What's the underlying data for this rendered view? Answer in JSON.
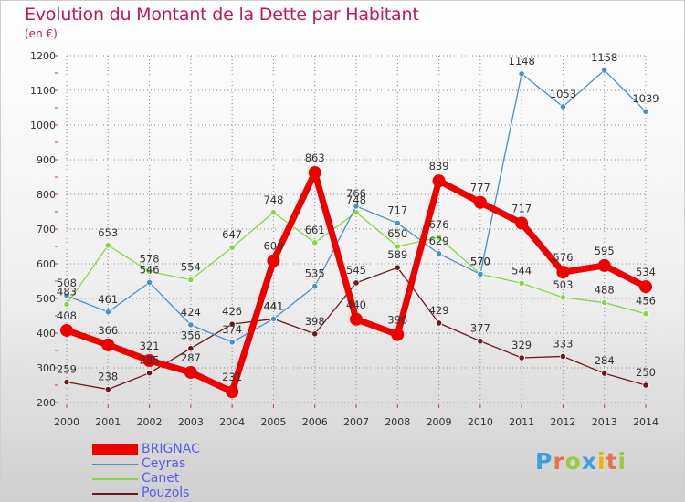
{
  "title": "Evolution du Montant de la Dette par Habitant",
  "subtitle": "(en €)",
  "logo": {
    "text": "Proxiti",
    "letter_colors": [
      "#3aa0e0",
      "#e8734a",
      "#9ccc3c",
      "#3aa0e0",
      "#f0b400",
      "#e8734a",
      "#9ccc3c"
    ]
  },
  "chart_data": {
    "type": "line",
    "x": [
      "2000",
      "2001",
      "2002",
      "2003",
      "2004",
      "2005",
      "2006",
      "2007",
      "2008",
      "2009",
      "2010",
      "2011",
      "2012",
      "2013",
      "2014"
    ],
    "y_ticks": [
      "200",
      "300",
      "400",
      "500",
      "600",
      "700",
      "800",
      "900",
      "1000",
      "1100",
      "1200"
    ],
    "ylim": [
      200,
      1200
    ],
    "grid": true,
    "legend_position": "bottom-left",
    "series": [
      {
        "name": "BRIGNAC",
        "color": "#ee0000",
        "emphasis": true,
        "values": [
          408,
          366,
          321,
          287,
          231,
          609,
          863,
          440,
          396,
          839,
          777,
          717,
          576,
          595,
          534
        ],
        "labels": [
          "408",
          "366",
          "321",
          "287",
          "231",
          "609",
          "863",
          "440",
          "396",
          "839",
          "777",
          "717",
          "576",
          "595",
          "534"
        ]
      },
      {
        "name": "Ceyras",
        "color": "#4a90c8",
        "emphasis": false,
        "values": [
          508,
          461,
          546,
          424,
          374,
          441,
          535,
          766,
          717,
          629,
          570,
          1148,
          1053,
          1158,
          1039
        ],
        "labels": [
          "508",
          "461",
          "546",
          "424",
          "374",
          "441",
          "535",
          "766",
          "717",
          "629",
          "570",
          "1148",
          "1053",
          "1158",
          "1039"
        ]
      },
      {
        "name": "Canet",
        "color": "#86d64a",
        "emphasis": false,
        "values": [
          483,
          653,
          578,
          554,
          647,
          748,
          661,
          748,
          650,
          676,
          570,
          544,
          503,
          488,
          456
        ],
        "labels": [
          "483",
          "653",
          "578",
          "554",
          "647",
          "748",
          "661",
          "748",
          "650",
          "676",
          "570",
          "544",
          "503",
          "488",
          "456"
        ]
      },
      {
        "name": "Pouzols",
        "color": "#6b1a1a",
        "emphasis": false,
        "values": [
          259,
          238,
          285,
          356,
          426,
          441,
          398,
          545,
          589,
          429,
          377,
          329,
          333,
          284,
          250
        ],
        "labels": [
          "259",
          "238",
          "285",
          "356",
          "426",
          "441",
          "398",
          "545",
          "589",
          "429",
          "377",
          "329",
          "333",
          "284",
          "250"
        ]
      }
    ]
  }
}
